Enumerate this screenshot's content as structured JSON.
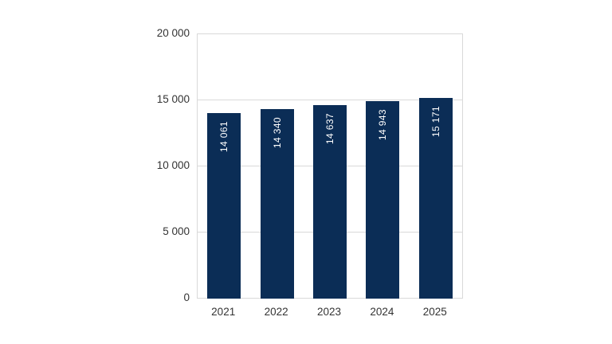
{
  "chart_data": {
    "type": "bar",
    "title": "",
    "xlabel": "",
    "ylabel": "",
    "categories": [
      "2021",
      "2022",
      "2023",
      "2024",
      "2025"
    ],
    "values": [
      14061,
      14340,
      14637,
      14943,
      15171
    ],
    "value_labels": [
      "14 061",
      "14 340",
      "14 637",
      "14 943",
      "15 171"
    ],
    "ylim": [
      0,
      20000
    ],
    "y_ticks": [
      0,
      5000,
      10000,
      15000,
      20000
    ],
    "y_tick_labels": [
      "0",
      "5 000",
      "10 000",
      "15 000",
      "20 000"
    ],
    "grid": true,
    "legend_position": "none",
    "bar_label_position": "inside-end-rotated",
    "colors": {
      "bar": "#0b2d56",
      "bar_label_text": "#ffffff",
      "gridline": "#d9d9d9",
      "axis_text": "#333333",
      "background": "#ffffff"
    }
  }
}
